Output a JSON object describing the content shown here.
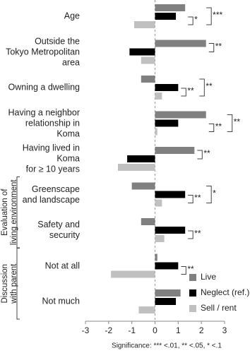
{
  "chart_data": {
    "type": "bar",
    "orientation": "horizontal",
    "categories": [
      "Age",
      "Outside the\nTokyo Metropolitan area",
      "Owning a dwelling",
      "Having a neighbor\nrelationship in Koma",
      "Having lived in Koma\nfor ≥ 10 years",
      "Greenscape\nand landscape",
      "Safety and\nsecurity",
      "Not at all",
      "Not much"
    ],
    "series": [
      {
        "name": "Live",
        "color": "#808080",
        "values": [
          1.3,
          2.2,
          -0.6,
          2.2,
          1.7,
          -1.0,
          -0.6,
          0.1,
          1.1
        ]
      },
      {
        "name": "Neglect (ref.)",
        "color": "#000000",
        "values": [
          0.9,
          -1.1,
          1.0,
          1.0,
          -1.2,
          1.3,
          1.3,
          1.0,
          0.9
        ]
      },
      {
        "name": "Sell / rent",
        "color": "#c0c0c0",
        "values": [
          -0.9,
          -0.6,
          0.3,
          0.1,
          -1.6,
          0.3,
          0.4,
          -1.9,
          -0.7
        ]
      }
    ],
    "significance": {
      "live": [
        "***",
        "**",
        "**",
        "**",
        "**",
        "*",
        null,
        null,
        null
      ],
      "sell": [
        "*",
        null,
        "**",
        "**",
        null,
        "**",
        "**",
        "**",
        null
      ]
    },
    "groups": [
      {
        "label": "Evaluation of\nliving environment",
        "from": 5,
        "to": 6
      },
      {
        "label": "Discussion\nwith parent",
        "from": 7,
        "to": 8
      }
    ],
    "xlim": [
      -3,
      3
    ],
    "xticks": [
      -3,
      -2,
      -1,
      0,
      1,
      2,
      3
    ],
    "footnote": "Significance: *** <.01, ** <.05, * <.1",
    "legend": "lower right"
  }
}
